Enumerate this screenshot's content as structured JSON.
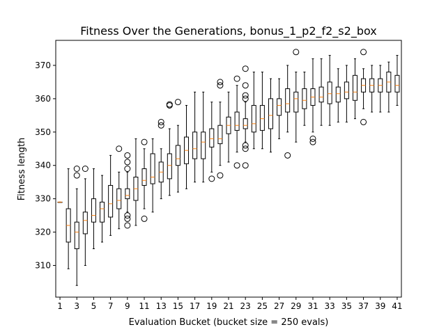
{
  "chart_data": {
    "type": "box",
    "title": "Fitness Over the Generations, bonus_1_p2_f2_s2_box",
    "xlabel": "Evaluation Bucket (bucket size = 250 evals)",
    "ylabel": "Fitness length",
    "ylim": [
      300.5,
      377.5
    ],
    "xlim": [
      0.5,
      41.5
    ],
    "x_ticks": [
      1,
      3,
      5,
      7,
      9,
      11,
      13,
      15,
      17,
      19,
      21,
      23,
      25,
      27,
      29,
      31,
      33,
      35,
      37,
      39,
      41
    ],
    "y_ticks": [
      310,
      320,
      330,
      340,
      350,
      360,
      370
    ],
    "grid": false,
    "colors": {
      "box": "#000000",
      "median": "#ff7f0e"
    },
    "boxes": [
      {
        "x": 1,
        "whislo": 329,
        "q1": 329,
        "med": 329,
        "q3": 329,
        "whishi": 329,
        "fliers": []
      },
      {
        "x": 2,
        "whislo": 309,
        "q1": 317,
        "med": 322,
        "q3": 327,
        "whishi": 339,
        "fliers": []
      },
      {
        "x": 3,
        "whislo": 304,
        "q1": 315,
        "med": 320,
        "q3": 323,
        "whishi": 333,
        "fliers": [
          337,
          339
        ]
      },
      {
        "x": 4,
        "whislo": 310,
        "q1": 319.5,
        "med": 323.5,
        "q3": 326,
        "whishi": 336,
        "fliers": [
          339
        ]
      },
      {
        "x": 5,
        "whislo": 315,
        "q1": 323,
        "med": 325,
        "q3": 330,
        "whishi": 339,
        "fliers": []
      },
      {
        "x": 6,
        "whislo": 317,
        "q1": 323,
        "med": 327,
        "q3": 329,
        "whishi": 337,
        "fliers": []
      },
      {
        "x": 7,
        "whislo": 319,
        "q1": 324.5,
        "med": 328.5,
        "q3": 334,
        "whishi": 343,
        "fliers": []
      },
      {
        "x": 8,
        "whislo": 321,
        "q1": 327,
        "med": 329.5,
        "q3": 333,
        "whishi": 338,
        "fliers": [
          345
        ]
      },
      {
        "x": 9,
        "whislo": 326,
        "q1": 330,
        "med": 331,
        "q3": 333,
        "whishi": 338,
        "fliers": [
          322,
          324,
          325,
          339,
          341,
          343
        ]
      },
      {
        "x": 10,
        "whislo": 322,
        "q1": 329.5,
        "med": 333,
        "q3": 336.5,
        "whishi": 348,
        "fliers": []
      },
      {
        "x": 11,
        "whislo": 327,
        "q1": 334,
        "med": 335.5,
        "q3": 339,
        "whishi": 345,
        "fliers": [
          324,
          347
        ]
      },
      {
        "x": 12,
        "whislo": 326,
        "q1": 334.5,
        "med": 336.5,
        "q3": 343.5,
        "whishi": 348,
        "fliers": []
      },
      {
        "x": 13,
        "whislo": 330,
        "q1": 335,
        "med": 338,
        "q3": 341,
        "whishi": 345,
        "fliers": [
          352,
          353
        ]
      },
      {
        "x": 14,
        "whislo": 331,
        "q1": 336,
        "med": 340,
        "q3": 343.5,
        "whishi": 351,
        "fliers": [
          358,
          358.3
        ]
      },
      {
        "x": 15,
        "whislo": 332,
        "q1": 340,
        "med": 342,
        "q3": 346,
        "whishi": 352,
        "fliers": [
          359
        ]
      },
      {
        "x": 16,
        "whislo": 333,
        "q1": 340.5,
        "med": 344.5,
        "q3": 348.5,
        "whishi": 358,
        "fliers": []
      },
      {
        "x": 17,
        "whislo": 335,
        "q1": 342,
        "med": 345,
        "q3": 350,
        "whishi": 362,
        "fliers": []
      },
      {
        "x": 18,
        "whislo": 335,
        "q1": 342,
        "med": 347,
        "q3": 350,
        "whishi": 362,
        "fliers": []
      },
      {
        "x": 19,
        "whislo": 338,
        "q1": 345.5,
        "med": 348,
        "q3": 351,
        "whishi": 359,
        "fliers": [
          336
        ]
      },
      {
        "x": 20,
        "whislo": 340,
        "q1": 346.5,
        "med": 348,
        "q3": 352,
        "whishi": 359,
        "fliers": [
          337,
          364,
          365
        ]
      },
      {
        "x": 21,
        "whislo": 341,
        "q1": 349.5,
        "med": 352,
        "q3": 354.5,
        "whishi": 362,
        "fliers": []
      },
      {
        "x": 22,
        "whislo": 344,
        "q1": 350.5,
        "med": 352,
        "q3": 356,
        "whishi": 364,
        "fliers": [
          340,
          366
        ]
      },
      {
        "x": 23,
        "whislo": 347,
        "q1": 351,
        "med": 352,
        "q3": 354,
        "whishi": 359,
        "fliers": [
          340,
          345,
          346,
          360,
          361,
          364,
          369
        ]
      },
      {
        "x": 24,
        "whislo": 345,
        "q1": 350,
        "med": 352.5,
        "q3": 358,
        "whishi": 368,
        "fliers": []
      },
      {
        "x": 25,
        "whislo": 345,
        "q1": 350.5,
        "med": 354,
        "q3": 358,
        "whishi": 368,
        "fliers": []
      },
      {
        "x": 26,
        "whislo": 344,
        "q1": 351,
        "med": 355,
        "q3": 360,
        "whishi": 366,
        "fliers": []
      },
      {
        "x": 27,
        "whislo": 348,
        "q1": 355,
        "med": 358,
        "q3": 360,
        "whishi": 366,
        "fliers": []
      },
      {
        "x": 28,
        "whislo": 350,
        "q1": 356,
        "med": 358.5,
        "q3": 363,
        "whishi": 370,
        "fliers": [
          343
        ]
      },
      {
        "x": 29,
        "whislo": 347,
        "q1": 356,
        "med": 360,
        "q3": 362,
        "whishi": 368,
        "fliers": [
          374
        ]
      },
      {
        "x": 30,
        "whislo": 352,
        "q1": 357,
        "med": 359.5,
        "q3": 363,
        "whishi": 368,
        "fliers": []
      },
      {
        "x": 31,
        "whislo": 350,
        "q1": 358,
        "med": 360.5,
        "q3": 363,
        "whishi": 372,
        "fliers": [
          347,
          348
        ]
      },
      {
        "x": 32,
        "whislo": 352,
        "q1": 359,
        "med": 360.5,
        "q3": 363.5,
        "whishi": 372,
        "fliers": []
      },
      {
        "x": 33,
        "whislo": 352,
        "q1": 358.5,
        "med": 361.5,
        "q3": 365,
        "whishi": 373,
        "fliers": []
      },
      {
        "x": 34,
        "whislo": 353,
        "q1": 359,
        "med": 361.5,
        "q3": 363.5,
        "whishi": 369,
        "fliers": []
      },
      {
        "x": 35,
        "whislo": 353,
        "q1": 360,
        "med": 362,
        "q3": 365,
        "whishi": 370,
        "fliers": []
      },
      {
        "x": 36,
        "whislo": 354,
        "q1": 359.5,
        "med": 362,
        "q3": 367,
        "whishi": 372,
        "fliers": []
      },
      {
        "x": 37,
        "whislo": 357,
        "q1": 362,
        "med": 364,
        "q3": 366,
        "whishi": 369,
        "fliers": [
          353,
          374
        ]
      },
      {
        "x": 38,
        "whislo": 356,
        "q1": 362,
        "med": 364,
        "q3": 366,
        "whishi": 370,
        "fliers": []
      },
      {
        "x": 39,
        "whislo": 356,
        "q1": 362,
        "med": 364,
        "q3": 366,
        "whishi": 370,
        "fliers": []
      },
      {
        "x": 40,
        "whislo": 356,
        "q1": 362,
        "med": 365,
        "q3": 368,
        "whishi": 371,
        "fliers": []
      },
      {
        "x": 41,
        "whislo": 358,
        "q1": 362,
        "med": 364,
        "q3": 367,
        "whishi": 373,
        "fliers": []
      }
    ]
  }
}
